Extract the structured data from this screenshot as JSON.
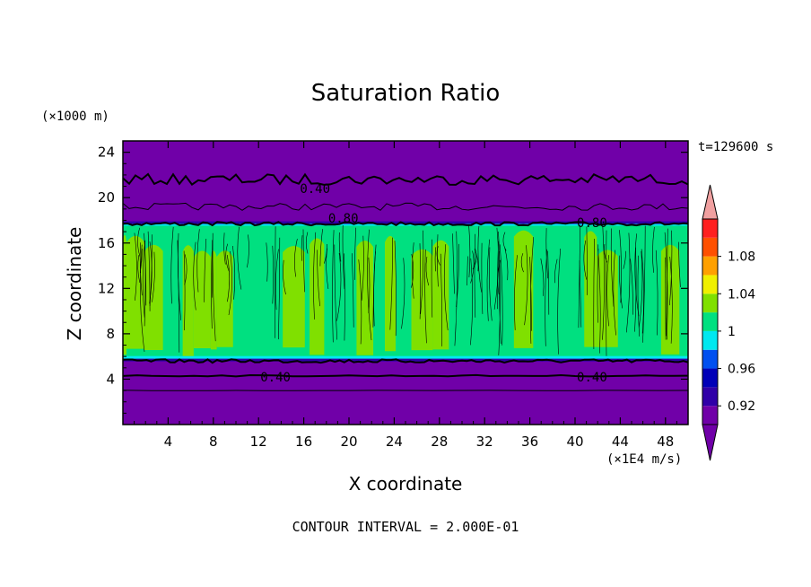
{
  "chart_data": {
    "type": "heatmap",
    "title": "Saturation Ratio",
    "xlabel": "X coordinate",
    "ylabel": "Z coordinate",
    "x_unit": "(×1E4 m/s)",
    "y_unit": "(×1000 m)",
    "time_label": "t=129600 s",
    "footer": "CONTOUR INTERVAL = 2.000E-01",
    "xlim": [
      0,
      50
    ],
    "ylim": [
      0,
      25
    ],
    "x_ticks": [
      4,
      8,
      12,
      16,
      20,
      24,
      28,
      32,
      36,
      40,
      44,
      48
    ],
    "y_ticks": [
      4,
      8,
      12,
      16,
      20,
      24
    ],
    "contour_labels": [
      {
        "text": "0.40",
        "x": 17,
        "z": 20.8
      },
      {
        "text": "0.80",
        "x": 19.5,
        "z": 18.2
      },
      {
        "text": "0.80",
        "x": 41.5,
        "z": 17.8
      },
      {
        "text": "0.40",
        "x": 13.5,
        "z": 4.2
      },
      {
        "text": "0.40",
        "x": 41.5,
        "z": 4.2
      }
    ],
    "colorbar": {
      "levels": [
        0.92,
        0.94,
        0.96,
        0.98,
        1.0,
        1.02,
        1.04,
        1.06,
        1.08,
        1.1
      ],
      "tick_labels": [
        "0.92",
        "0.96",
        "1",
        "1.04",
        "1.08"
      ],
      "tick_values": [
        0.92,
        0.96,
        1.0,
        1.04,
        1.08
      ],
      "colors": [
        "#7000a8",
        "#3000a8",
        "#0000b8",
        "#0050f0",
        "#00e8f0",
        "#00e080",
        "#80e000",
        "#f0f000",
        "#ffa000",
        "#ff5000",
        "#ff2020",
        "#f0a0a0"
      ]
    },
    "field_layers": {
      "lower_dry_top_z": 5.8,
      "cloud_top_z": 17.6
    }
  }
}
